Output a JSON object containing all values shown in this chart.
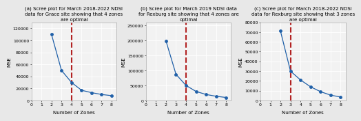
{
  "plots": [
    {
      "title": "(a) Scree plot for March 2018-2022 NDSI\ndata for Grace site showing that 4 zones\nare optimal",
      "zones": [
        2,
        3,
        4,
        5,
        6,
        7,
        8
      ],
      "mse": [
        110000,
        50000,
        30000,
        17000,
        13000,
        10000,
        8000
      ],
      "dashed_x": 4,
      "ylim": [
        0,
        130000
      ],
      "yticks": [
        0,
        20000,
        40000,
        60000,
        80000,
        100000,
        120000
      ],
      "ytick_labels": [
        "0",
        "20000",
        "40000",
        "60000",
        "80000",
        "100000",
        "120000"
      ]
    },
    {
      "title": "(b) Scree plot for March 2019 NDSI data\nfor Rexburg site showing that 4 zones are\noptimal",
      "zones": [
        2,
        3,
        4,
        5,
        6,
        7,
        8
      ],
      "mse": [
        198000,
        87000,
        50000,
        30000,
        20000,
        14000,
        10000
      ],
      "dashed_x": 4,
      "ylim": [
        0,
        260000
      ],
      "yticks": [
        0,
        50000,
        100000,
        150000,
        200000,
        250000
      ],
      "ytick_labels": [
        "0",
        "50000",
        "100000",
        "150000",
        "200000",
        "250000"
      ]
    },
    {
      "title": "(c) Scree plot for March 2018-2022 NDSI\ndata for Rexburg site showing that 3 zones\nare optimal",
      "zones": [
        2,
        3,
        4,
        5,
        6,
        7,
        8
      ],
      "mse": [
        71000,
        30000,
        21000,
        14000,
        9000,
        5500,
        3500
      ],
      "dashed_x": 3,
      "ylim": [
        0,
        80000
      ],
      "yticks": [
        0,
        10000,
        20000,
        30000,
        40000,
        50000,
        60000,
        70000,
        80000
      ],
      "ytick_labels": [
        "0",
        "10000",
        "20000",
        "30000",
        "40000",
        "50000",
        "60000",
        "70000",
        "80000"
      ]
    }
  ],
  "line_color": "#2060a8",
  "marker": "o",
  "marker_size": 2.5,
  "dashed_color": "#b22222",
  "dashed_linewidth": 1.5,
  "xlabel": "Number of Zones",
  "ylabel": "MSE",
  "title_fontsize": 5.0,
  "label_fontsize": 5.0,
  "tick_fontsize": 4.5,
  "bg_color": "#f2f2f2",
  "fig_bg_color": "#e8e8e8",
  "grid_color": "#ffffff",
  "xticks": [
    0,
    1,
    2,
    3,
    4,
    5,
    6,
    7,
    8
  ],
  "xlim": [
    0,
    8.5
  ]
}
